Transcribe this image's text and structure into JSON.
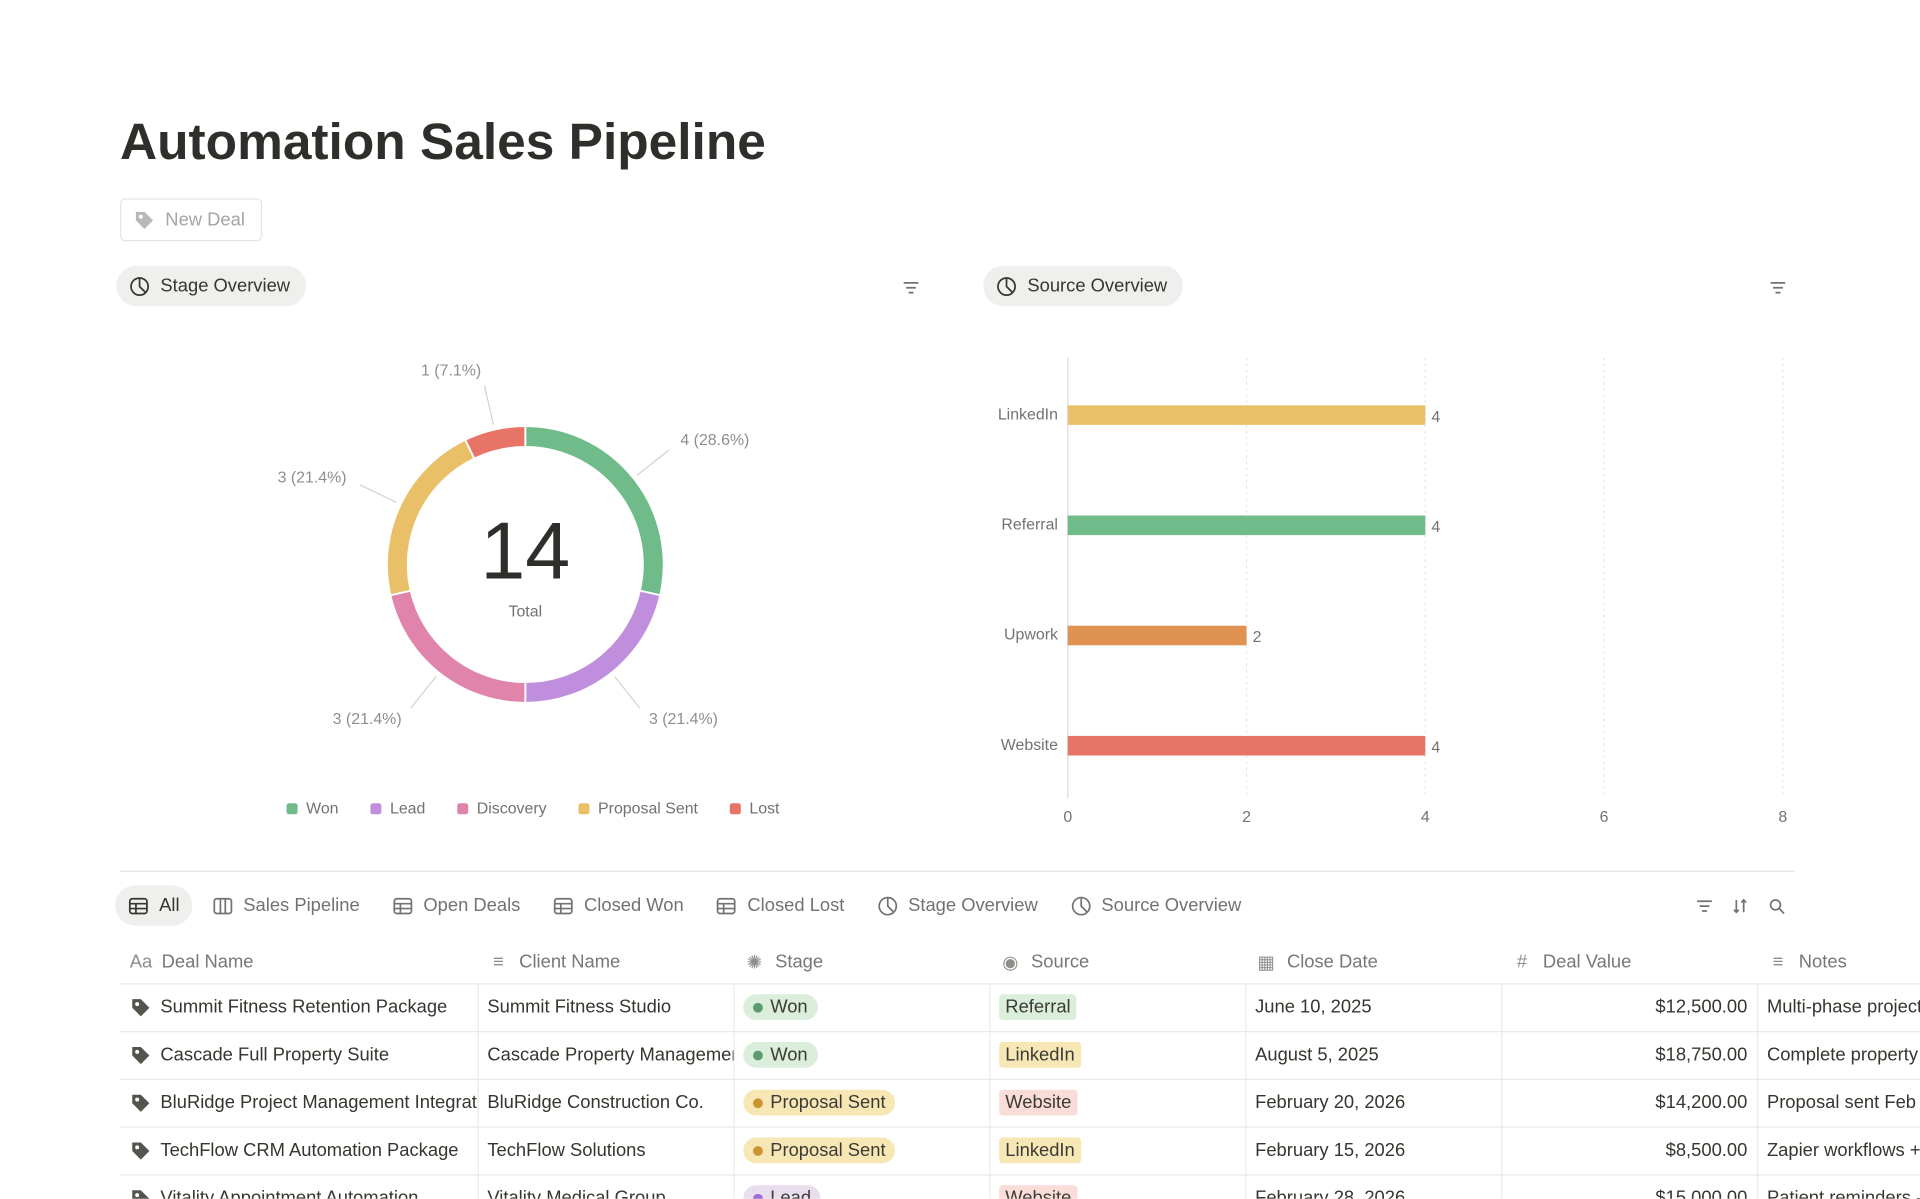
{
  "page": {
    "title": "Automation Sales Pipeline",
    "new_button": "New Deal"
  },
  "chart_data": [
    {
      "type": "donut",
      "view_name": "Stage Overview",
      "categories": [
        "Won",
        "Lead",
        "Discovery",
        "Proposal Sent",
        "Lost"
      ],
      "values": [
        4,
        3,
        3,
        3,
        1
      ],
      "value_labels": [
        "4 (28.6%)",
        "3 (21.4%)",
        "3 (21.4%)",
        "3 (21.4%)",
        "1 (7.1%)"
      ],
      "colors": [
        "#6fbb8a",
        "#bf8fde",
        "#e084ab",
        "#e9c068",
        "#e77466"
      ],
      "total": 14,
      "total_label": "Total",
      "legend": "bottom"
    },
    {
      "type": "bar",
      "orientation": "horizontal",
      "view_name": "Source Overview",
      "categories": [
        "LinkedIn",
        "Referral",
        "Upwork",
        "Website"
      ],
      "values": [
        4,
        4,
        2,
        4
      ],
      "colors": [
        "#e9c068",
        "#6fbb8a",
        "#e09252",
        "#e77466"
      ],
      "xlim": [
        0,
        8
      ],
      "xticks": [
        0,
        2,
        4,
        6,
        8
      ],
      "grid": true
    }
  ],
  "tabs": [
    "All",
    "Sales Pipeline",
    "Open Deals",
    "Closed Won",
    "Closed Lost",
    "Stage Overview",
    "Source Overview"
  ],
  "table": {
    "columns": [
      "Deal Name",
      "Client Name",
      "Stage",
      "Source",
      "Close Date",
      "Deal Value",
      "Notes"
    ],
    "rows": [
      [
        "Summit Fitness Retention Package",
        "Summit Fitness Studio",
        {
          "text": "Won",
          "bg": "#dbeddb",
          "dot": "#5c9b70"
        },
        {
          "text": "Referral",
          "bg": "#dbeddb"
        },
        "June 10, 2025",
        "$12,500.00",
        "Multi-phase project"
      ],
      [
        "Cascade Full Property Suite",
        "Cascade Property Management",
        {
          "text": "Won",
          "bg": "#dbeddb",
          "dot": "#5c9b70"
        },
        {
          "text": "LinkedIn",
          "bg": "#f6e7b4"
        },
        "August 5, 2025",
        "$18,750.00",
        "Complete property"
      ],
      [
        "BluRidge Project Management Integration",
        "BluRidge Construction Co.",
        {
          "text": "Proposal Sent",
          "bg": "#f6e7b4",
          "dot": "#cb9433"
        },
        {
          "text": "Website",
          "bg": "#fadcd9"
        },
        "February 20, 2026",
        "$14,200.00",
        "Proposal sent Feb"
      ],
      [
        "TechFlow CRM Automation Package",
        "TechFlow Solutions",
        {
          "text": "Proposal Sent",
          "bg": "#f6e7b4",
          "dot": "#cb9433"
        },
        {
          "text": "LinkedIn",
          "bg": "#f6e7b4"
        },
        "February 15, 2026",
        "$8,500.00",
        "Zapier workflows +"
      ],
      [
        "Vitality Appointment Automation",
        "Vitality Medical Group",
        {
          "text": "Lead",
          "bg": "#e8deee",
          "dot": "#9a6dd7"
        },
        {
          "text": "Website",
          "bg": "#fadcd9"
        },
        "February 28, 2026",
        "$15,000.00",
        "Patient reminders -"
      ]
    ]
  }
}
